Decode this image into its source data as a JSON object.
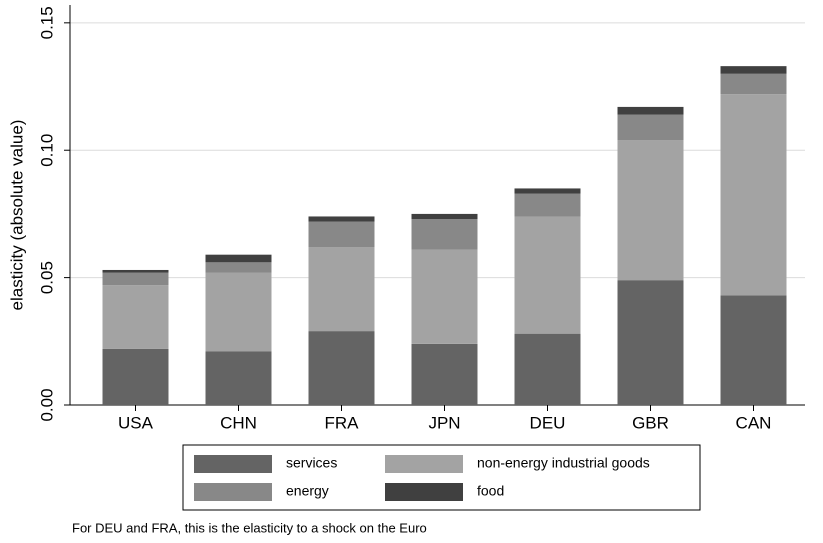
{
  "chart_data": {
    "type": "stacked-bar",
    "y_label": "elasticity (absolute value)",
    "categories": [
      "USA",
      "CHN",
      "FRA",
      "JPN",
      "DEU",
      "GBR",
      "CAN"
    ],
    "series": [
      {
        "name": "services",
        "color": "#646464",
        "values": [
          0.022,
          0.021,
          0.029,
          0.024,
          0.028,
          0.049,
          0.043
        ]
      },
      {
        "name": "non-energy industrial goods",
        "color": "#a3a3a3",
        "values": [
          0.025,
          0.031,
          0.033,
          0.037,
          0.046,
          0.055,
          0.079
        ]
      },
      {
        "name": "energy",
        "color": "#888888",
        "values": [
          0.005,
          0.004,
          0.01,
          0.012,
          0.009,
          0.01,
          0.008
        ]
      },
      {
        "name": "food",
        "color": "#404040",
        "values": [
          0.001,
          0.003,
          0.002,
          0.002,
          0.002,
          0.003,
          0.003
        ]
      }
    ],
    "ylim": [
      0,
      0.157
    ],
    "yticks": [
      {
        "value": 0,
        "label": "0.00"
      },
      {
        "value": 0.05,
        "label": "0.05"
      },
      {
        "value": 0.1,
        "label": "0.10"
      },
      {
        "value": 0.15,
        "label": "0.15"
      }
    ],
    "grid": true,
    "footnote": "For DEU and FRA, this is the elasticity to a shock on the Euro"
  }
}
